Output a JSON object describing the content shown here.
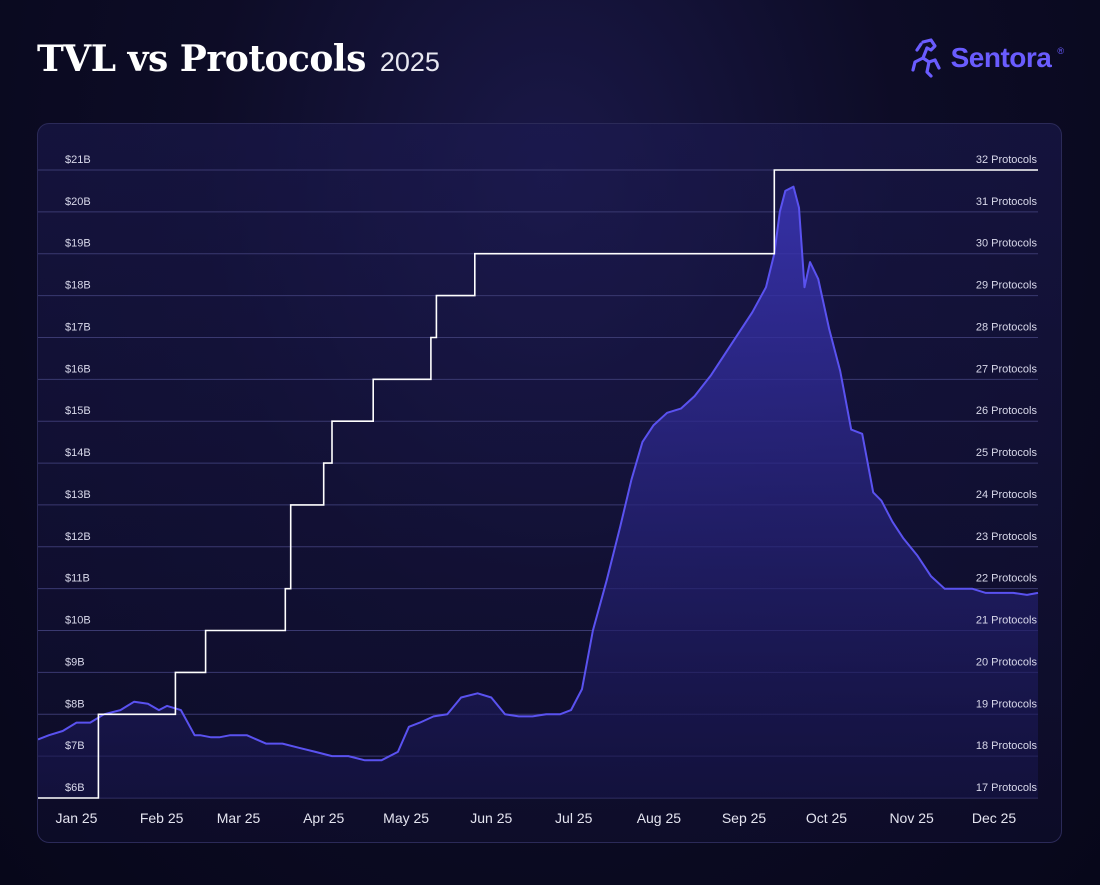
{
  "header": {
    "title": "TVL vs Protocols",
    "subtitle": "2025",
    "brand": "Sentora",
    "brand_mark": "®",
    "brand_color": "#6a5cff"
  },
  "colors": {
    "tvl_line": "#5a52f0",
    "tvl_fill_top": "#3b35b8",
    "tvl_fill_bottom": "#161448",
    "protocols_line": "#ffffff",
    "grid": "#3a3970"
  },
  "chart_data": {
    "type": "line",
    "title": "TVL vs Protocols",
    "subtitle": "2025",
    "x_categories": [
      "Jan 25",
      "Feb 25",
      "Mar 25",
      "Apr 25",
      "May 25",
      "Jun 25",
      "Jul 25",
      "Aug 25",
      "Sep 25",
      "Oct 25",
      "Nov 25",
      "Dec 25"
    ],
    "y_left": {
      "min": 6,
      "max": 21,
      "ticks": [
        6,
        7,
        8,
        9,
        10,
        11,
        12,
        13,
        14,
        15,
        16,
        17,
        18,
        19,
        20,
        21
      ],
      "tick_labels": [
        "$6B",
        "$7B",
        "$8B",
        "$9B",
        "$10B",
        "$11B",
        "$12B",
        "$13B",
        "$14B",
        "$15B",
        "$16B",
        "$17B",
        "$18B",
        "$19B",
        "$20B",
        "$21B"
      ]
    },
    "y_right": {
      "min": 17,
      "max": 32,
      "ticks": [
        17,
        18,
        19,
        20,
        21,
        22,
        23,
        24,
        25,
        26,
        27,
        28,
        29,
        30,
        31,
        32
      ],
      "tick_labels": [
        "17 Protocols",
        "18 Protocols",
        "19 Protocols",
        "20 Protocols",
        "21 Protocols",
        "22 Protocols",
        "23 Protocols",
        "24 Protocols",
        "25 Protocols",
        "26 Protocols",
        "27 Protocols",
        "28 Protocols",
        "29 Protocols",
        "30 Protocols",
        "31 Protocols",
        "32 Protocols"
      ]
    },
    "grid": true,
    "x_start": "2025-01-01",
    "x_end": "2025-12-31",
    "series": [
      {
        "axis": "left",
        "style": "area",
        "x": [
          "2025-01-01",
          "2025-01-05",
          "2025-01-10",
          "2025-01-15",
          "2025-01-20",
          "2025-01-25",
          "2025-01-31",
          "2025-02-05",
          "2025-02-10",
          "2025-02-14",
          "2025-02-17",
          "2025-02-22",
          "2025-02-27",
          "2025-03-01",
          "2025-03-05",
          "2025-03-08",
          "2025-03-12",
          "2025-03-18",
          "2025-03-25",
          "2025-03-31",
          "2025-04-06",
          "2025-04-12",
          "2025-04-18",
          "2025-04-24",
          "2025-04-30",
          "2025-05-06",
          "2025-05-12",
          "2025-05-16",
          "2025-05-20",
          "2025-05-25",
          "2025-05-30",
          "2025-06-04",
          "2025-06-10",
          "2025-06-15",
          "2025-06-20",
          "2025-06-25",
          "2025-06-30",
          "2025-07-05",
          "2025-07-10",
          "2025-07-14",
          "2025-07-18",
          "2025-07-22",
          "2025-07-27",
          "2025-08-01",
          "2025-08-05",
          "2025-08-09",
          "2025-08-13",
          "2025-08-18",
          "2025-08-23",
          "2025-08-28",
          "2025-09-03",
          "2025-09-08",
          "2025-09-13",
          "2025-09-18",
          "2025-09-23",
          "2025-09-26",
          "2025-09-28",
          "2025-09-30",
          "2025-10-03",
          "2025-10-05",
          "2025-10-07",
          "2025-10-09",
          "2025-10-12",
          "2025-10-16",
          "2025-10-20",
          "2025-10-24",
          "2025-10-28",
          "2025-11-01",
          "2025-11-04",
          "2025-11-08",
          "2025-11-12",
          "2025-11-17",
          "2025-11-22",
          "2025-11-27",
          "2025-12-02",
          "2025-12-07",
          "2025-12-12",
          "2025-12-17",
          "2025-12-22",
          "2025-12-27",
          "2025-12-31"
        ],
        "values": [
          7.4,
          7.5,
          7.6,
          7.8,
          7.8,
          8.0,
          8.1,
          8.3,
          8.25,
          8.1,
          8.2,
          8.1,
          7.5,
          7.5,
          7.45,
          7.45,
          7.5,
          7.5,
          7.3,
          7.3,
          7.2,
          7.1,
          7.0,
          7.0,
          6.9,
          6.9,
          7.1,
          7.7,
          7.8,
          7.95,
          8.0,
          8.4,
          8.5,
          8.4,
          8.0,
          7.95,
          7.95,
          8.0,
          8.0,
          8.1,
          8.6,
          10.0,
          11.2,
          12.5,
          13.6,
          14.5,
          14.9,
          15.2,
          15.3,
          15.6,
          16.1,
          16.6,
          17.1,
          17.6,
          18.2,
          19.0,
          20.0,
          20.5,
          20.6,
          20.1,
          18.2,
          18.8,
          18.4,
          17.2,
          16.2,
          14.8,
          14.7,
          13.3,
          13.1,
          12.6,
          12.2,
          11.8,
          11.3,
          11.0,
          11.0,
          11.0,
          10.9,
          10.9,
          10.9,
          10.85,
          10.9
        ]
      },
      {
        "axis": "right",
        "style": "step",
        "steps": [
          {
            "x": "2025-01-01",
            "y": 17
          },
          {
            "x": "2025-01-23",
            "y": 19
          },
          {
            "x": "2025-02-20",
            "y": 20
          },
          {
            "x": "2025-03-03",
            "y": 21
          },
          {
            "x": "2025-04-01",
            "y": 22
          },
          {
            "x": "2025-04-03",
            "y": 24
          },
          {
            "x": "2025-04-15",
            "y": 25
          },
          {
            "x": "2025-04-18",
            "y": 26
          },
          {
            "x": "2025-05-03",
            "y": 27
          },
          {
            "x": "2025-05-24",
            "y": 28
          },
          {
            "x": "2025-05-26",
            "y": 29
          },
          {
            "x": "2025-06-09",
            "y": 30
          },
          {
            "x": "2025-09-26",
            "y": 32
          },
          {
            "x": "2025-12-31",
            "y": 32
          }
        ]
      }
    ]
  }
}
